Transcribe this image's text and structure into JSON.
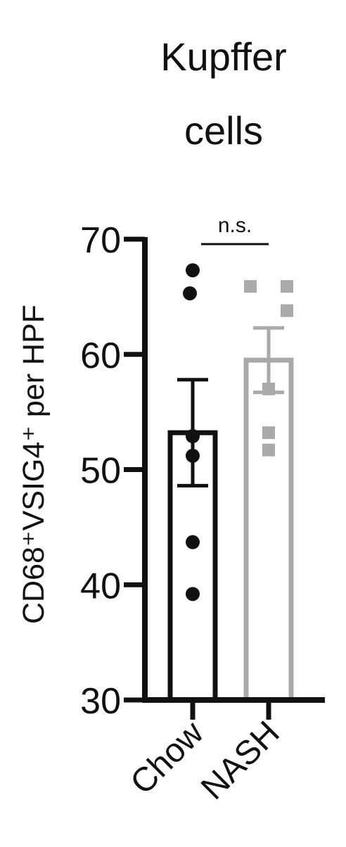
{
  "chart_data": {
    "type": "bar",
    "title": "Kupffer cells",
    "title_lines": [
      "Kupffer",
      "cells"
    ],
    "ylabel": "CD68⁺VSIG4⁺ per HPF",
    "xlabel": "",
    "ylim": [
      30,
      70
    ],
    "yticks": [
      30,
      40,
      50,
      60,
      70
    ],
    "categories": [
      "Chow",
      "NASH"
    ],
    "grid": false,
    "series": [
      {
        "name": "Chow",
        "mean": 53.2,
        "sem": 4.6,
        "points": [
          67.3,
          65.3,
          52.9,
          51.2,
          43.7,
          39.2
        ],
        "color": "#111111",
        "marker": "circle"
      },
      {
        "name": "NASH",
        "mean": 59.5,
        "sem": 2.8,
        "points": [
          65.9,
          65.9,
          63.8,
          57.0,
          53.2,
          51.7
        ],
        "color": "#aaaaaa",
        "marker": "square"
      }
    ],
    "annotations": [
      {
        "text": "n.s.",
        "between": [
          "Chow",
          "NASH"
        ]
      }
    ]
  }
}
